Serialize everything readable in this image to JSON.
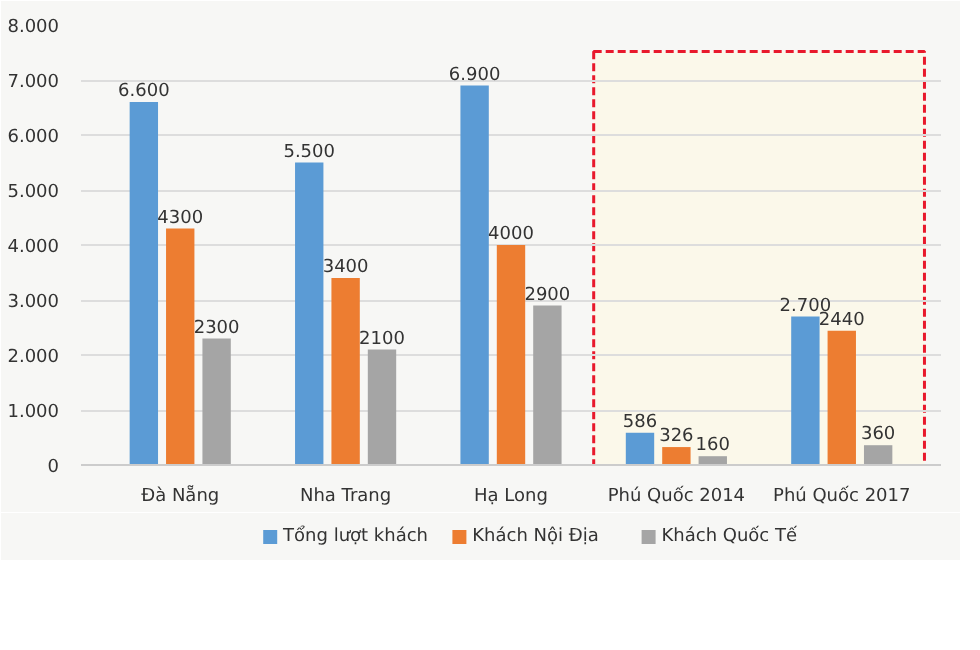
{
  "chart_data": {
    "type": "bar",
    "categories": [
      "Đà Nẵng",
      "Nha Trang",
      "Hạ Long",
      "Phú Quốc 2014",
      "Phú Quốc 2017"
    ],
    "series": [
      {
        "name": "Tổng lượt khách",
        "color": "#5b9bd5",
        "values": [
          6600,
          5500,
          6900,
          586,
          2700
        ],
        "value_labels": [
          "6.600",
          "5.500",
          "6.900",
          "586",
          "2.700"
        ]
      },
      {
        "name": "Khách Nội Địa",
        "color": "#ed7d31",
        "values": [
          4300,
          3400,
          4000,
          326,
          2440
        ],
        "value_labels": [
          "4300",
          "3400",
          "4000",
          "326",
          "2440"
        ]
      },
      {
        "name": "Khách Quốc Tế",
        "color": "#a5a5a5",
        "values": [
          2300,
          2100,
          2900,
          160,
          360
        ],
        "value_labels": [
          "2300",
          "2100",
          "2900",
          "160",
          "360"
        ]
      }
    ],
    "ylim": [
      0,
      8000
    ],
    "yticks": [
      {
        "value": 0,
        "label": "0"
      },
      {
        "value": 1000,
        "label": "1.000"
      },
      {
        "value": 2000,
        "label": "2.000"
      },
      {
        "value": 3000,
        "label": "3.000"
      },
      {
        "value": 4000,
        "label": "4.000"
      },
      {
        "value": 5000,
        "label": "5.000"
      },
      {
        "value": 6000,
        "label": "6.000"
      },
      {
        "value": 7000,
        "label": "7.000"
      },
      {
        "value": 8000,
        "label": "8.000"
      }
    ],
    "bands": [
      {
        "axis": "x",
        "from": "Phú Quốc 2014",
        "to": "Phú Quốc 2017",
        "label": null,
        "color": "#e8192c"
      }
    ],
    "grid": "y",
    "legend": "bottom"
  }
}
